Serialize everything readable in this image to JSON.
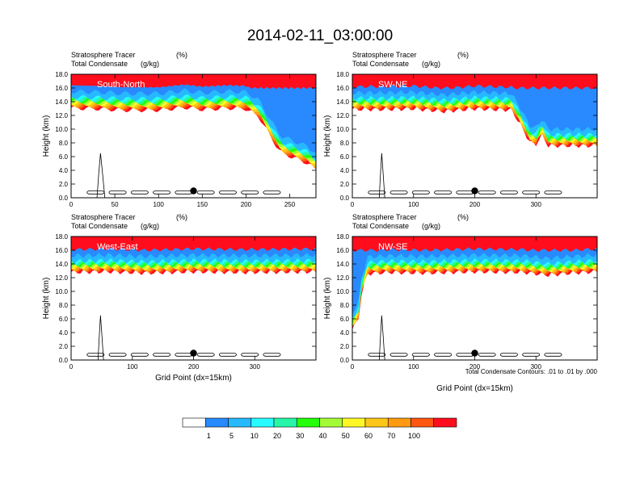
{
  "figure": {
    "title": "2014-02-11_03:00:00",
    "footnote": "Total Condensate Contours: .01 to .01 by .000"
  },
  "colorbar": {
    "colors": [
      "#ffffff",
      "#2989ff",
      "#27b9ff",
      "#27fbff",
      "#27f5a8",
      "#24ff0a",
      "#a4fb35",
      "#fff825",
      "#fcc619",
      "#ff9a10",
      "#ff5612",
      "#ff0d1c"
    ],
    "labels": [
      "1",
      "5",
      "10",
      "20",
      "30",
      "40",
      "50",
      "60",
      "70",
      "100"
    ]
  },
  "chart_data": [
    {
      "type": "heatmap",
      "panel_label": "South-North",
      "subtitle_left_1": "Stratosphere Tracer",
      "subtitle_right_1": "(%)",
      "subtitle_left_2": "Total Condensate",
      "subtitle_right_2": "(g/kg)",
      "xlabel": "",
      "ylabel": "Height (km)",
      "xlim": [
        0,
        280
      ],
      "ylim": [
        0,
        18
      ],
      "xticks": [
        0,
        50,
        100,
        150,
        200,
        250
      ],
      "yticks": [
        0,
        2,
        4,
        6,
        8,
        10,
        12,
        14,
        16,
        18
      ],
      "ytick_labels": [
        "0.0",
        "2.0",
        "4.0",
        "6.0",
        "8.0",
        "10.0",
        "12.0",
        "14.0",
        "16.0",
        "18.0"
      ],
      "marker": {
        "x": 140,
        "y": 1.0
      },
      "tropopause_km": [
        [
          0,
          15.5
        ],
        [
          30,
          15.4
        ],
        [
          60,
          15.2
        ],
        [
          100,
          15.2
        ],
        [
          130,
          15.6
        ],
        [
          150,
          15.3
        ],
        [
          180,
          15.5
        ],
        [
          200,
          15.4
        ],
        [
          215,
          14.2
        ],
        [
          225,
          12.0
        ],
        [
          232,
          10.5
        ],
        [
          240,
          9.0
        ],
        [
          250,
          8.5
        ],
        [
          260,
          8.0
        ],
        [
          270,
          7.5
        ],
        [
          280,
          6.5
        ]
      ]
    },
    {
      "type": "heatmap",
      "panel_label": "SW-NE",
      "subtitle_left_1": "Stratosphere Tracer",
      "subtitle_right_1": "(%)",
      "subtitle_left_2": "Total Condensate",
      "subtitle_right_2": "(g/kg)",
      "xlabel": "",
      "ylabel": "Height (km)",
      "xlim": [
        0,
        400
      ],
      "ylim": [
        0,
        18
      ],
      "xticks": [
        0,
        100,
        200,
        300
      ],
      "yticks": [
        0,
        2,
        4,
        6,
        8,
        10,
        12,
        14,
        16,
        18
      ],
      "ytick_labels": [
        "0.0",
        "2.0",
        "4.0",
        "6.0",
        "8.0",
        "10.0",
        "12.0",
        "14.0",
        "16.0",
        "18.0"
      ],
      "marker": {
        "x": 200,
        "y": 1.0
      },
      "tropopause_km": [
        [
          0,
          15.3
        ],
        [
          50,
          15.3
        ],
        [
          100,
          15.4
        ],
        [
          150,
          15.0
        ],
        [
          200,
          15.4
        ],
        [
          260,
          15.2
        ],
        [
          275,
          13.0
        ],
        [
          290,
          10.5
        ],
        [
          300,
          10.2
        ],
        [
          310,
          11.5
        ],
        [
          320,
          10.0
        ],
        [
          345,
          10.0
        ],
        [
          400,
          10.0
        ]
      ]
    },
    {
      "type": "heatmap",
      "panel_label": "West-East",
      "subtitle_left_1": "Stratosphere Tracer",
      "subtitle_right_1": "(%)",
      "subtitle_left_2": "Total Condensate",
      "subtitle_right_2": "(g/kg)",
      "xlabel": "Grid Point (dx=15km)",
      "ylabel": "Height (km)",
      "xlim": [
        0,
        400
      ],
      "ylim": [
        0,
        18
      ],
      "xticks": [
        0,
        100,
        200,
        300
      ],
      "yticks": [
        0,
        2,
        4,
        6,
        8,
        10,
        12,
        14,
        16,
        18
      ],
      "ytick_labels": [
        "0.0",
        "2.0",
        "4.0",
        "6.0",
        "8.0",
        "10.0",
        "12.0",
        "14.0",
        "16.0",
        "18.0"
      ],
      "marker": {
        "x": 200,
        "y": 1.0
      },
      "tropopause_km": [
        [
          0,
          15.2
        ],
        [
          60,
          15.3
        ],
        [
          120,
          15.1
        ],
        [
          200,
          15.3
        ],
        [
          280,
          15.2
        ],
        [
          400,
          15.3
        ]
      ]
    },
    {
      "type": "heatmap",
      "panel_label": "NW-SE",
      "subtitle_left_1": "Stratosphere Tracer",
      "subtitle_right_1": "(%)",
      "subtitle_left_2": "Total Condensate",
      "subtitle_right_2": "(g/kg)",
      "xlabel": "Grid Point (dx=15km)",
      "ylabel": "Height (km)",
      "xlim": [
        0,
        400
      ],
      "ylim": [
        0,
        18
      ],
      "xticks": [
        0,
        100,
        200,
        300
      ],
      "yticks": [
        0,
        2,
        4,
        6,
        8,
        10,
        12,
        14,
        16,
        18
      ],
      "ytick_labels": [
        "0.0",
        "2.0",
        "4.0",
        "6.0",
        "8.0",
        "10.0",
        "12.0",
        "14.0",
        "16.0",
        "18.0"
      ],
      "marker": {
        "x": 200,
        "y": 1.0
      },
      "tropopause_km": [
        [
          0,
          6.8
        ],
        [
          10,
          8.5
        ],
        [
          15,
          12.0
        ],
        [
          25,
          15.0
        ],
        [
          60,
          15.2
        ],
        [
          120,
          15.1
        ],
        [
          200,
          15.3
        ],
        [
          280,
          15.2
        ],
        [
          320,
          14.8
        ],
        [
          360,
          15.1
        ],
        [
          400,
          15.3
        ]
      ]
    }
  ]
}
